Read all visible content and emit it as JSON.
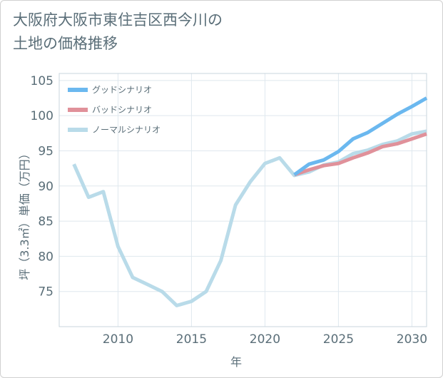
{
  "chart_data": {
    "type": "line",
    "title": "大阪府大阪市東住吉区西今川の\n土地の価格推移",
    "xlabel": "年",
    "ylabel": "坪（3.3㎡）単価（万円）",
    "xlim": [
      2006,
      2031
    ],
    "ylim": [
      70,
      106
    ],
    "x_ticks": [
      2010,
      2015,
      2020,
      2025,
      2030
    ],
    "y_ticks": [
      75,
      80,
      85,
      90,
      95,
      100,
      105
    ],
    "grid": true,
    "legend_position": "top-left",
    "series": [
      {
        "name": "グッドシナリオ",
        "color": "#6bb8ef",
        "x": [
          2022,
          2023,
          2024,
          2025,
          2026,
          2027,
          2028,
          2029,
          2030,
          2031
        ],
        "values": [
          91.6,
          93.1,
          93.7,
          94.9,
          96.7,
          97.6,
          98.9,
          100.2,
          101.3,
          102.5
        ]
      },
      {
        "name": "バッドシナリオ",
        "color": "#e0919a",
        "x": [
          2022,
          2023,
          2024,
          2025,
          2026,
          2027,
          2028,
          2029,
          2030,
          2031
        ],
        "values": [
          91.6,
          92.3,
          92.9,
          93.2,
          94.0,
          94.7,
          95.6,
          96.0,
          96.7,
          97.4
        ]
      },
      {
        "name": "ノーマルシナリオ",
        "color": "#b9dbe9",
        "x": [
          2007,
          2008,
          2009,
          2010,
          2011,
          2012,
          2013,
          2014,
          2015,
          2016,
          2017,
          2018,
          2019,
          2020,
          2021,
          2022,
          2023,
          2024,
          2025,
          2026,
          2027,
          2028,
          2029,
          2030,
          2031
        ],
        "values": [
          93.1,
          88.4,
          89.2,
          81.4,
          77.0,
          76.0,
          75.0,
          73.0,
          73.6,
          75.0,
          79.4,
          87.3,
          90.6,
          93.2,
          94.0,
          91.5,
          92.0,
          93.0,
          93.4,
          94.6,
          95.1,
          95.9,
          96.4,
          97.4,
          97.8
        ]
      }
    ]
  }
}
